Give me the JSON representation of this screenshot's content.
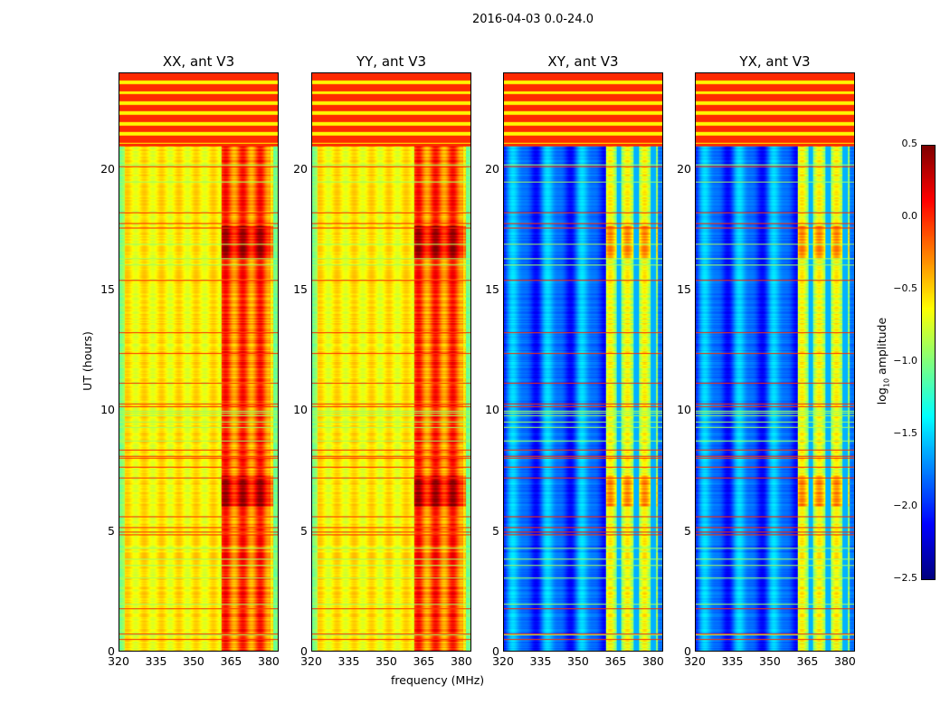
{
  "title": "2016-04-03 0.0-24.0",
  "chart_data": {
    "type": "heatmap",
    "title": "2016-04-03 0.0-24.0",
    "xlabel": "frequency (MHz)",
    "ylabel": "UT (hours)",
    "xlim": [
      320,
      384
    ],
    "ylim": [
      0,
      24
    ],
    "xticks": [
      "320",
      "335",
      "350",
      "365",
      "380"
    ],
    "yticks": [
      "0",
      "5",
      "10",
      "15",
      "20"
    ],
    "xtick_values": [
      320,
      335,
      350,
      365,
      380
    ],
    "ytick_values": [
      0,
      5,
      10,
      15,
      20
    ],
    "panels": [
      {
        "title": "XX, ant V3",
        "base_level": -0.6,
        "rfi_level": -0.15
      },
      {
        "title": "YY, ant V3",
        "base_level": -0.6,
        "rfi_level": -0.15
      },
      {
        "title": "XY, ant V3",
        "base_level": -1.8,
        "rfi_level": -0.85
      },
      {
        "title": "YX, ant V3",
        "base_level": -1.8,
        "rfi_level": -0.85
      }
    ],
    "flagged_hours": [
      21.0,
      24.0
    ],
    "flagged_level": 0.0,
    "rfi_band_mhz": [
      361,
      382
    ],
    "colorbar": {
      "label": "log10 amplitude",
      "label_main": "log",
      "label_sub": "10",
      "label_rest": " amplitude",
      "range": [
        -2.5,
        0.5
      ],
      "ticks": [
        "0.5",
        "0.0",
        "−0.5",
        "−1.0",
        "−1.5",
        "−2.0",
        "−2.5"
      ],
      "tick_values": [
        0.5,
        0.0,
        -0.5,
        -1.0,
        -1.5,
        -2.0,
        -2.5
      ],
      "colormap": "jet"
    }
  }
}
